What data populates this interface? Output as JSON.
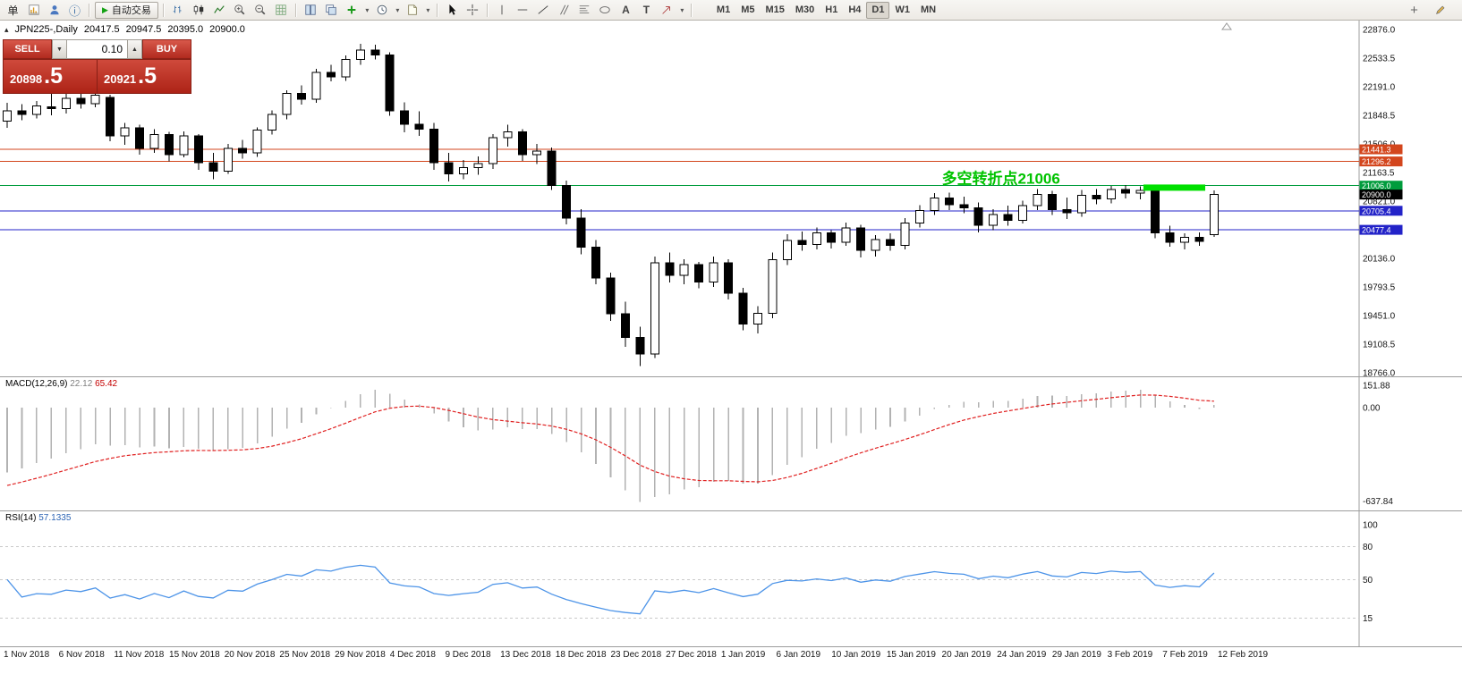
{
  "toolbar": {
    "autotrading_label": "自动交易",
    "text_tool": "A",
    "label_tool": "T",
    "timeframes": [
      "M1",
      "M5",
      "M15",
      "M30",
      "H1",
      "H4",
      "D1",
      "W1",
      "MN"
    ],
    "active_timeframe": "D1"
  },
  "icons": {
    "new-order": "单",
    "info": "ⓘ",
    "autotrading-play": "▶",
    "dropdown": "▾",
    "stepper-down": "▼",
    "stepper-up": "▲",
    "collapse": "▴",
    "add": "+"
  },
  "header": {
    "symbol_period": "JPN225-,Daily",
    "open": "20417.5",
    "high": "20947.5",
    "low": "20395.0",
    "close": "20900.0"
  },
  "one_click": {
    "sell_label": "SELL",
    "buy_label": "BUY",
    "volume": "0.10",
    "sell_int": "20898",
    "sell_frac": ".5",
    "buy_int": "20921",
    "buy_frac": ".5"
  },
  "indicators": {
    "macd_label": "MACD(12,26,9)",
    "macd_value": "22.12",
    "macd_signal_value": "65.42",
    "rsi_label": "RSI(14)",
    "rsi_value": "57.1335"
  },
  "chart_data": [
    {
      "type": "candlestick",
      "symbol": "JPN225-",
      "timeframe": "Daily",
      "ylim": [
        18766.0,
        22876.0
      ],
      "up_color": "#ffffff",
      "down_color": "#000000",
      "y_ticks": [
        22876.0,
        22533.5,
        22191.0,
        21848.5,
        21506.0,
        21163.5,
        20821.0,
        20478.5,
        20136.0,
        19793.5,
        19451.0,
        19108.5,
        18766.0
      ],
      "x_tick_labels": [
        "1 Nov 2018",
        "6 Nov 2018",
        "11 Nov 2018",
        "15 Nov 2018",
        "20 Nov 2018",
        "25 Nov 2018",
        "29 Nov 2018",
        "4 Dec 2018",
        "9 Dec 2018",
        "13 Dec 2018",
        "18 Dec 2018",
        "23 Dec 2018",
        "27 Dec 2018",
        "1 Jan 2019",
        "6 Jan 2019",
        "10 Jan 2019",
        "15 Jan 2019",
        "20 Jan 2019",
        "24 Jan 2019",
        "29 Jan 2019",
        "3 Feb 2019",
        "7 Feb 2019",
        "12 Feb 2019"
      ],
      "candles_ohlc": [
        [
          21780,
          22000,
          21700,
          21900
        ],
        [
          21900,
          21980,
          21790,
          21860
        ],
        [
          21860,
          22020,
          21810,
          21960
        ],
        [
          21950,
          22150,
          21850,
          21930
        ],
        [
          21930,
          22120,
          21870,
          22050
        ],
        [
          22050,
          22130,
          21930,
          21985
        ],
        [
          21985,
          22170,
          21945,
          22090
        ],
        [
          22060,
          22095,
          21540,
          21600
        ],
        [
          21600,
          21755,
          21495,
          21700
        ],
        [
          21700,
          21735,
          21380,
          21450
        ],
        [
          21450,
          21685,
          21400,
          21620
        ],
        [
          21620,
          21650,
          21295,
          21380
        ],
        [
          21380,
          21655,
          21345,
          21600
        ],
        [
          21600,
          21625,
          21195,
          21280
        ],
        [
          21280,
          21400,
          21085,
          21180
        ],
        [
          21180,
          21505,
          21150,
          21450
        ],
        [
          21450,
          21555,
          21330,
          21400
        ],
        [
          21400,
          21705,
          21350,
          21670
        ],
        [
          21670,
          21905,
          21620,
          21860
        ],
        [
          21860,
          22150,
          21800,
          22110
        ],
        [
          22110,
          22205,
          21975,
          22040
        ],
        [
          22040,
          22405,
          22000,
          22360
        ],
        [
          22360,
          22455,
          22255,
          22310
        ],
        [
          22310,
          22565,
          22260,
          22520
        ],
        [
          22520,
          22705,
          22455,
          22630
        ],
        [
          22630,
          22695,
          22515,
          22570
        ],
        [
          22570,
          22605,
          21845,
          21900
        ],
        [
          21900,
          22005,
          21645,
          21740
        ],
        [
          21740,
          21895,
          21605,
          21680
        ],
        [
          21680,
          21755,
          21195,
          21280
        ],
        [
          21280,
          21400,
          21055,
          21150
        ],
        [
          21150,
          21315,
          21085,
          21220
        ],
        [
          21220,
          21355,
          21135,
          21270
        ],
        [
          21270,
          21625,
          21205,
          21580
        ],
        [
          21580,
          21735,
          21475,
          21650
        ],
        [
          21650,
          21685,
          21305,
          21380
        ],
        [
          21380,
          21505,
          21265,
          21420
        ],
        [
          21420,
          21465,
          20955,
          21010
        ],
        [
          21010,
          21065,
          20545,
          20620
        ],
        [
          20620,
          20725,
          20185,
          20270
        ],
        [
          20270,
          20355,
          19825,
          19900
        ],
        [
          19900,
          19965,
          19385,
          19470
        ],
        [
          19470,
          19615,
          19075,
          19190
        ],
        [
          19190,
          19315,
          18848,
          18990
        ],
        [
          18990,
          20155,
          18945,
          20080
        ],
        [
          20080,
          20205,
          19845,
          19930
        ],
        [
          19930,
          20125,
          19825,
          20060
        ],
        [
          20060,
          20095,
          19775,
          19850
        ],
        [
          19850,
          20155,
          19795,
          20080
        ],
        [
          20080,
          20125,
          19645,
          19720
        ],
        [
          19720,
          19785,
          19275,
          19350
        ],
        [
          19350,
          19565,
          19235,
          19480
        ],
        [
          19480,
          20205,
          19420,
          20120
        ],
        [
          20120,
          20425,
          20055,
          20350
        ],
        [
          20350,
          20455,
          20225,
          20300
        ],
        [
          20300,
          20505,
          20245,
          20440
        ],
        [
          20440,
          20475,
          20255,
          20330
        ],
        [
          20330,
          20565,
          20285,
          20500
        ],
        [
          20500,
          20535,
          20145,
          20230
        ],
        [
          20230,
          20415,
          20155,
          20360
        ],
        [
          20360,
          20435,
          20225,
          20290
        ],
        [
          20290,
          20615,
          20245,
          20560
        ],
        [
          20560,
          20775,
          20505,
          20710
        ],
        [
          20710,
          20915,
          20655,
          20860
        ],
        [
          20860,
          20925,
          20715,
          20780
        ],
        [
          20780,
          20875,
          20675,
          20740
        ],
        [
          20740,
          20805,
          20445,
          20530
        ],
        [
          20530,
          20725,
          20475,
          20660
        ],
        [
          20660,
          20765,
          20525,
          20590
        ],
        [
          20590,
          20825,
          20555,
          20770
        ],
        [
          20770,
          20965,
          20715,
          20900
        ],
        [
          20900,
          20945,
          20655,
          20720
        ],
        [
          20720,
          20865,
          20605,
          20680
        ],
        [
          20680,
          20955,
          20635,
          20890
        ],
        [
          20890,
          20965,
          20785,
          20850
        ],
        [
          20850,
          21005,
          20795,
          20960
        ],
        [
          20960,
          21015,
          20855,
          20920
        ],
        [
          20920,
          21000,
          20845,
          20950
        ],
        [
          20950,
          20985,
          20375,
          20440
        ],
        [
          20440,
          20525,
          20275,
          20330
        ],
        [
          20330,
          20435,
          20245,
          20390
        ],
        [
          20390,
          20445,
          20285,
          20340
        ],
        [
          20417.5,
          20947.5,
          20395.0,
          20900.0
        ]
      ],
      "hlines": [
        {
          "price": 21441.3,
          "label": "21441.3",
          "color": "#d3461d"
        },
        {
          "price": 21296.2,
          "label": "21296.2",
          "color": "#d3461d"
        },
        {
          "price": 21006.0,
          "label": "21006.0",
          "color": "#009c3c"
        },
        {
          "price": 20705.4,
          "label": "20705.4",
          "color": "#2323c8"
        },
        {
          "price": 20477.4,
          "label": "20477.4",
          "color": "#2323c8"
        }
      ],
      "current_price_badge": {
        "price": 20900.0,
        "label": "20900.0",
        "color": "#000000"
      },
      "annotation": {
        "text": "多空转折点21006",
        "color": "#00c300",
        "anchor_bar": 63.5,
        "anchor_price": 21032
      },
      "highlight_rect": {
        "bar_from": 77.2,
        "bar_to": 81.4,
        "price_top": 21020,
        "price_bottom": 20945,
        "color": "#00e000"
      }
    },
    {
      "type": "bar",
      "name": "MACD(12,26,9)",
      "derived_from": "closes of candles_ohlc",
      "params": {
        "fast": 12,
        "slow": 26,
        "signal": 9
      },
      "seed": {
        "macd_start": -480,
        "signal_start": -555
      },
      "y_ticks": [
        151.88,
        0,
        -637.84
      ],
      "current": {
        "macd": 22.12,
        "signal": 65.42
      },
      "histogram_color": "#b2b2b2",
      "signal_color": "#e02020"
    },
    {
      "type": "line",
      "name": "RSI(14)",
      "derived_from": "closes of candles_ohlc",
      "params": {
        "period": 14
      },
      "levels": [
        80,
        50,
        15
      ],
      "y_ticks": [
        100,
        80,
        50,
        15
      ],
      "current": 57.1335,
      "line_color": "#4d94e8"
    }
  ]
}
